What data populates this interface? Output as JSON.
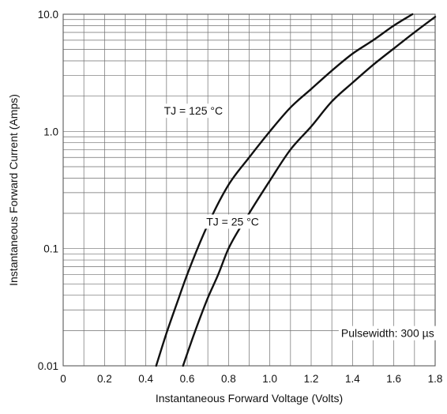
{
  "chart_data": {
    "type": "line",
    "title": "",
    "xlabel": "Instantaneous Forward Voltage (Volts)",
    "ylabel": "Instantaneous Forward Current (Amps)",
    "xlim": [
      0,
      1.8
    ],
    "ylim": [
      0.01,
      10.0
    ],
    "yscale": "log",
    "grid": true,
    "x_ticks": [
      0,
      0.2,
      0.4,
      0.6,
      0.8,
      1.0,
      1.2,
      1.4,
      1.6,
      1.8
    ],
    "x_tick_labels": [
      "0",
      "0.2",
      "0.4",
      "0.6",
      "0.8",
      "1.0",
      "1.2",
      "1.4",
      "1.6",
      "1.8"
    ],
    "y_ticks": [
      0.01,
      0.1,
      1.0,
      10.0
    ],
    "y_tick_labels": [
      "0.01",
      "0.1",
      "1.0",
      "10.0"
    ],
    "series": [
      {
        "name": "TJ = 125 °C",
        "x": [
          0.45,
          0.5,
          0.55,
          0.6,
          0.7,
          0.8,
          0.9,
          1.0,
          1.1,
          1.2,
          1.3,
          1.4,
          1.5,
          1.6,
          1.69
        ],
        "y": [
          0.01,
          0.019,
          0.034,
          0.06,
          0.16,
          0.35,
          0.6,
          1.0,
          1.6,
          2.3,
          3.3,
          4.6,
          6.0,
          8.0,
          10.0
        ]
      },
      {
        "name": "TJ = 25 °C",
        "x": [
          0.58,
          0.62,
          0.66,
          0.7,
          0.75,
          0.8,
          0.9,
          1.0,
          1.1,
          1.2,
          1.3,
          1.4,
          1.5,
          1.6,
          1.7,
          1.8
        ],
        "y": [
          0.01,
          0.016,
          0.025,
          0.038,
          0.06,
          0.1,
          0.2,
          0.38,
          0.7,
          1.1,
          1.8,
          2.6,
          3.7,
          5.1,
          7.0,
          9.5
        ]
      }
    ],
    "annotations": [
      {
        "text": "TJ = 125 °C",
        "x": 0.63,
        "y": 1.5
      },
      {
        "text": "TJ = 25 °C",
        "x": 0.82,
        "y": 0.17
      },
      {
        "text": "Pulsewidth: 300 µs",
        "x": 1.57,
        "y": 0.019
      }
    ]
  }
}
